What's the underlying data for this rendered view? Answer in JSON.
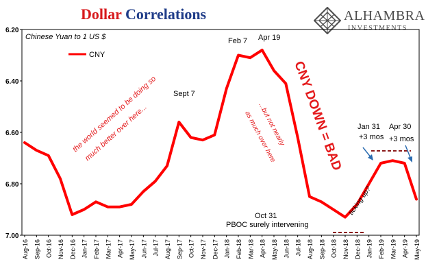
{
  "title_part1": "Dollar",
  "title_part2": "Correlations",
  "logo": {
    "name": "ALHAMBRA",
    "sub": "INVESTMENTS",
    "icon": "diamond-lattice-icon"
  },
  "colors": {
    "series": "#ff0000",
    "title_red": "#d7191c",
    "title_blue": "#1f3c88",
    "annotation_red": "#e41a1c",
    "dash": "#8b1a1a"
  },
  "chart_data": {
    "type": "line",
    "subtitle": "Chinese Yuan to 1 US $",
    "ylim": [
      7.0,
      6.2
    ],
    "y_inverted": true,
    "y_ticks": [
      6.2,
      6.4,
      6.6,
      6.8,
      7.0
    ],
    "y_tick_labels": [
      "6.20",
      "6.40",
      "6.60",
      "6.80",
      "7.00"
    ],
    "x_tick_labels": [
      "Aug-16",
      "Sep-16",
      "Oct-16",
      "Nov-16",
      "Dec-16",
      "Jan-17",
      "Feb-17",
      "Mar-17",
      "Apr-17",
      "May-17",
      "Jun-17",
      "Jul-17",
      "Aug-17",
      "Sep-17",
      "Oct-17",
      "Nov-17",
      "Dec-17",
      "Jan-18",
      "Feb-18",
      "Mar-18",
      "Apr-18",
      "May-18",
      "Jun-18",
      "Jul-18",
      "Aug-18",
      "Sep-18",
      "Oct-18",
      "Nov-18",
      "Dec-18",
      "Jan-19",
      "Feb-19",
      "Mar-19",
      "Apr-19",
      "May-19"
    ],
    "legend": {
      "position": "top-left",
      "label": "CNY"
    },
    "series": [
      {
        "name": "CNY",
        "x": [
          "Aug-16",
          "Sep-16",
          "Oct-16",
          "Nov-16",
          "Dec-16",
          "Jan-17",
          "Feb-17",
          "Mar-17",
          "Apr-17",
          "May-17",
          "Jun-17",
          "Jul-17",
          "Aug-17",
          "Sep-17",
          "Oct-17",
          "Nov-17",
          "Dec-17",
          "Jan-18",
          "Feb-18",
          "Mar-18",
          "Apr-18",
          "May-18",
          "Jun-18",
          "Jul-18",
          "Aug-18",
          "Sep-18",
          "Oct-18",
          "Nov-18",
          "Dec-18",
          "Jan-19",
          "Feb-19",
          "Mar-19",
          "Apr-19",
          "May-19"
        ],
        "values": [
          6.64,
          6.67,
          6.69,
          6.78,
          6.92,
          6.9,
          6.87,
          6.89,
          6.89,
          6.88,
          6.83,
          6.79,
          6.73,
          6.56,
          6.62,
          6.63,
          6.61,
          6.43,
          6.3,
          6.31,
          6.28,
          6.36,
          6.41,
          6.62,
          6.85,
          6.87,
          6.9,
          6.93,
          6.88,
          6.8,
          6.72,
          6.71,
          6.72,
          6.86
        ]
      }
    ],
    "annotations": [
      {
        "text": "Feb 7",
        "color": "black"
      },
      {
        "text": "Apr 19",
        "color": "black"
      },
      {
        "text": "Sept 7",
        "color": "black"
      },
      {
        "text": "Oct 31",
        "color": "black"
      },
      {
        "text": "PBOC surely intervening",
        "color": "black"
      },
      {
        "text": "Jan 31",
        "color": "black"
      },
      {
        "text": "+3 mos",
        "color": "black"
      },
      {
        "text": "Apr 30",
        "color": "black"
      },
      {
        "text": "+3 mos",
        "color": "black"
      },
      {
        "text": "the world seemed to be doing so",
        "color": "red"
      },
      {
        "text": "much better over here...",
        "color": "red"
      },
      {
        "text": "...but not nearly",
        "color": "red"
      },
      {
        "text": "as much over here",
        "color": "red"
      },
      {
        "text": "CNY DOWN = BAD",
        "color": "red"
      },
      {
        "text": "ticking up?",
        "color": "black"
      }
    ]
  }
}
